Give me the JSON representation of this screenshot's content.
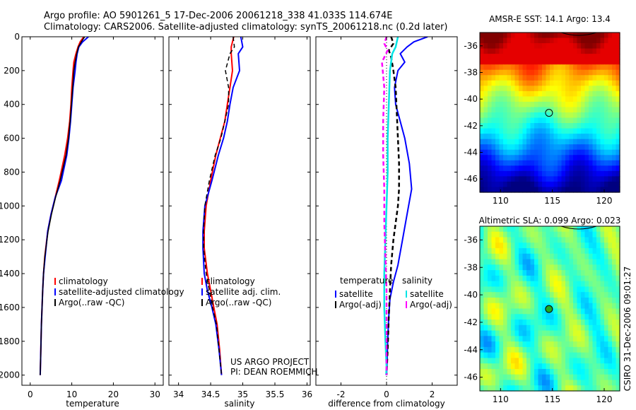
{
  "header": {
    "line1": "Argo profile: AO 5901261_5 17-Dec-2006 20061218_338 41.033S 114.674E",
    "line2": "Climatology: CARS2006. Satellite-adjusted climatology: synTS_20061218.nc (0.2d later)"
  },
  "side_text": "CSIRO 31-Dec-2006 09:01:27",
  "colors": {
    "climatology": "#ff0000",
    "satellite": "#0000ff",
    "argo": "#000000",
    "cyan": "#00e5e5",
    "magenta": "#ff00ff"
  },
  "chart_data": [
    {
      "type": "line",
      "id": "temperature",
      "xlabel": "temperature",
      "ylabel": "",
      "xlim": [
        -2,
        32
      ],
      "ylim": [
        2060,
        0
      ],
      "xticks": [
        0,
        10,
        20,
        30
      ],
      "yticks": [
        0,
        200,
        400,
        600,
        800,
        1000,
        1200,
        1400,
        1600,
        1800,
        2000
      ],
      "legend": [
        "climatology",
        "satellite-adjusted climatology",
        "Argo(..raw -QC)"
      ],
      "series": [
        {
          "name": "climatology",
          "color": "#ff0000",
          "width": 2,
          "dash": "",
          "x": [
            12.9,
            12.0,
            11.5,
            11.0,
            10.5,
            10.3,
            10.0,
            9.8,
            9.5,
            9.0,
            8.3,
            7.0,
            6.0,
            5.0,
            4.2,
            3.5,
            3.2,
            3.0,
            2.7,
            2.5,
            2.4
          ],
          "y": [
            0,
            30,
            60,
            100,
            150,
            200,
            300,
            400,
            500,
            600,
            700,
            850,
            950,
            1050,
            1150,
            1300,
            1400,
            1500,
            1700,
            1900,
            2000
          ]
        },
        {
          "name": "satellite-adjusted climatology",
          "color": "#0000ff",
          "width": 2,
          "dash": "",
          "x": [
            14.0,
            12.6,
            11.7,
            11.3,
            11.0,
            10.8,
            10.3,
            10.0,
            9.7,
            9.3,
            8.8,
            7.5,
            6.0,
            5.0,
            4.2,
            3.6,
            3.2,
            3.0,
            2.7,
            2.5,
            2.4
          ],
          "y": [
            0,
            30,
            60,
            100,
            150,
            200,
            300,
            400,
            500,
            600,
            700,
            850,
            950,
            1050,
            1150,
            1300,
            1400,
            1500,
            1700,
            1900,
            2000
          ]
        },
        {
          "name": "Argo(..raw -QC)",
          "color": "#000000",
          "width": 1.5,
          "dash": "",
          "x": [
            13.1,
            12.3,
            11.6,
            11.2,
            10.8,
            10.5,
            10.2,
            9.9,
            9.6,
            9.2,
            8.6,
            7.2,
            6.1,
            5.1,
            4.3,
            3.5,
            3.2,
            3.0,
            2.7,
            2.5,
            2.4
          ],
          "y": [
            0,
            30,
            60,
            100,
            150,
            200,
            300,
            400,
            500,
            600,
            700,
            850,
            950,
            1050,
            1150,
            1300,
            1400,
            1500,
            1700,
            1900,
            2000
          ]
        }
      ]
    },
    {
      "type": "line",
      "id": "salinity",
      "xlabel": "salinity",
      "ylabel": "",
      "xlim": [
        33.85,
        36.05
      ],
      "ylim": [
        2060,
        0
      ],
      "xticks": [
        34,
        34.5,
        35,
        35.5,
        36
      ],
      "legend": [
        "climatology",
        "satellite adj. clim.",
        "Argo(..raw -QC)"
      ],
      "annotation": [
        "US ARGO PROJECT",
        "PI: DEAN ROEMMICH"
      ],
      "series": [
        {
          "name": "climatology",
          "color": "#ff0000",
          "width": 2,
          "dash": "",
          "x": [
            34.86,
            34.82,
            34.82,
            34.84,
            34.8,
            34.76,
            34.72,
            34.65,
            34.58,
            34.5,
            34.43,
            34.4,
            34.4,
            34.45,
            34.5,
            34.55,
            34.6,
            34.64,
            34.67
          ],
          "y": [
            0,
            60,
            100,
            200,
            300,
            400,
            500,
            600,
            700,
            850,
            1000,
            1150,
            1250,
            1400,
            1500,
            1600,
            1700,
            1850,
            2000
          ]
        },
        {
          "name": "satellite adj. clim.",
          "color": "#0000ff",
          "width": 2,
          "dash": "",
          "x": [
            34.97,
            35.0,
            34.93,
            34.95,
            34.85,
            34.8,
            34.76,
            34.7,
            34.62,
            34.52,
            34.41,
            34.38,
            34.38,
            34.4,
            34.45,
            34.52,
            34.58,
            34.63,
            34.67
          ],
          "y": [
            0,
            60,
            100,
            200,
            300,
            400,
            500,
            600,
            700,
            850,
            1000,
            1150,
            1250,
            1400,
            1500,
            1600,
            1700,
            1850,
            2000
          ]
        },
        {
          "name": "Argo(..raw -QC)",
          "color": "#000000",
          "width": 1.5,
          "dash": "6,4",
          "x": [
            34.85,
            34.87,
            34.8,
            34.73,
            34.78,
            34.78,
            34.72,
            34.66,
            34.57,
            34.48,
            34.41,
            34.39,
            34.39,
            34.43,
            34.48,
            34.53,
            34.59,
            34.63,
            34.67
          ],
          "y": [
            0,
            60,
            100,
            200,
            300,
            400,
            500,
            600,
            700,
            850,
            1000,
            1150,
            1250,
            1400,
            1500,
            1600,
            1700,
            1850,
            2000
          ]
        }
      ]
    },
    {
      "type": "line",
      "id": "difference",
      "xlabel": "difference from climatology",
      "ylabel": "",
      "xlim": [
        -3.1,
        3.1
      ],
      "ylim": [
        2060,
        0
      ],
      "xticks": [
        -2,
        0,
        2
      ],
      "legend_temperature": {
        "title": "temperature",
        "items": [
          "satellite",
          "Argo(-adj)"
        ]
      },
      "legend_salinity": {
        "title": "salinity",
        "items": [
          "satellite",
          "Argo(-adj)"
        ]
      },
      "series": [
        {
          "name": "temperature satellite",
          "color": "#0000ff",
          "width": 2,
          "dash": "",
          "x": [
            1.8,
            1.2,
            0.9,
            0.6,
            0.8,
            0.5,
            0.35,
            0.4,
            0.6,
            0.8,
            1.0,
            1.1,
            0.9,
            0.7,
            0.5,
            0.3,
            0.15,
            0.1,
            0.05,
            0.02,
            0.0
          ],
          "y": [
            0,
            30,
            60,
            100,
            150,
            200,
            300,
            400,
            500,
            600,
            750,
            900,
            1050,
            1200,
            1350,
            1450,
            1550,
            1650,
            1800,
            1950,
            2000
          ]
        },
        {
          "name": "temperature Argo(-adj)",
          "color": "#000000",
          "width": 2.5,
          "dash": "6,4",
          "x": [
            0.2,
            0.3,
            0.1,
            0.2,
            0.3,
            0.4,
            0.45,
            0.5,
            0.55,
            0.55,
            0.5,
            0.4,
            0.3,
            0.2,
            0.15,
            0.1,
            0.05,
            0.0
          ],
          "y": [
            0,
            40,
            80,
            120,
            200,
            300,
            450,
            600,
            750,
            900,
            1000,
            1100,
            1200,
            1350,
            1500,
            1650,
            1850,
            2000
          ]
        },
        {
          "name": "salinity satellite",
          "color": "#00e5e5",
          "width": 2.5,
          "dash": "",
          "x": [
            0.5,
            0.4,
            0.25,
            0.15,
            0.1,
            0.05,
            0.05,
            0.0,
            -0.05,
            -0.1,
            -0.1,
            -0.05,
            0.0,
            -0.02
          ],
          "y": [
            0,
            60,
            100,
            200,
            400,
            600,
            800,
            1000,
            1200,
            1400,
            1600,
            1800,
            1950,
            2000
          ]
        },
        {
          "name": "salinity Argo(-adj)",
          "color": "#ff00ff",
          "width": 2.5,
          "dash": "6,4",
          "x": [
            0.0,
            -0.1,
            0.05,
            -0.2,
            -0.1,
            -0.15,
            -0.15,
            -0.1,
            -0.1,
            -0.05,
            0.0,
            0.0,
            0.0
          ],
          "y": [
            0,
            40,
            80,
            150,
            300,
            500,
            700,
            900,
            1100,
            1300,
            1500,
            1800,
            2000
          ]
        }
      ]
    },
    {
      "type": "heatmap",
      "id": "sst_map",
      "title": "AMSR-E SST: 14.1 Argo: 13.4",
      "xlim": [
        108,
        121.5
      ],
      "ylim": [
        -47,
        -35
      ],
      "xticks": [
        110,
        115,
        120
      ],
      "yticks": [
        -36,
        -38,
        -40,
        -42,
        -44,
        -46
      ],
      "marker": {
        "lon": 114.674,
        "lat": -41.033
      }
    },
    {
      "type": "heatmap",
      "id": "sla_map",
      "title": "Altimetric SLA: 0.099 Argo: 0.023",
      "xlim": [
        108,
        121.5
      ],
      "ylim": [
        -47,
        -35
      ],
      "xticks": [
        110,
        115,
        120
      ],
      "yticks": [
        -36,
        -38,
        -40,
        -42,
        -44,
        -46
      ],
      "marker": {
        "lon": 114.674,
        "lat": -41.033
      }
    }
  ]
}
